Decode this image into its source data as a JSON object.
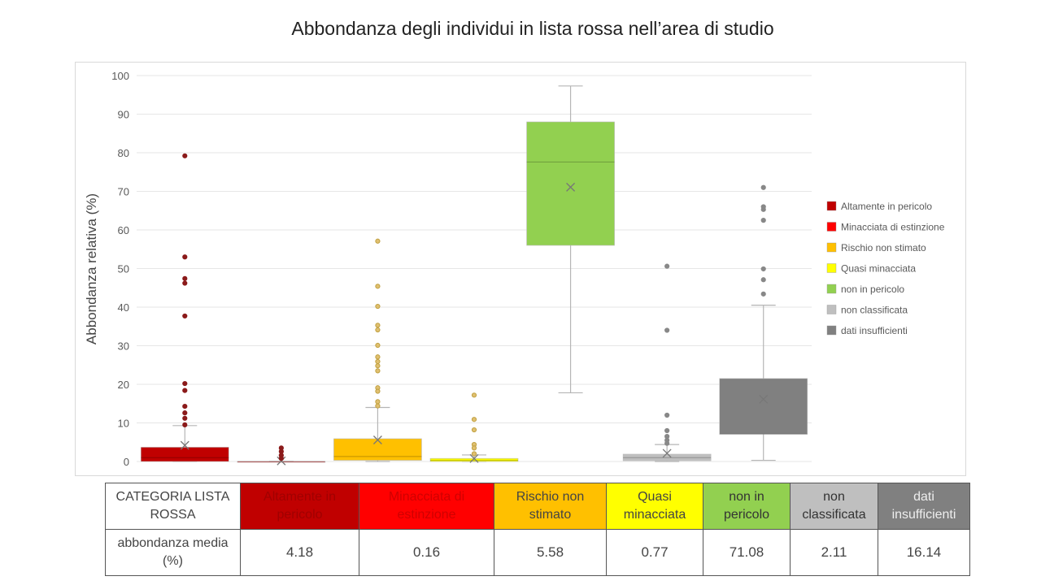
{
  "title": "Abbondanza degli individui in lista rossa nell’area di studio",
  "chart_data": {
    "type": "boxplot",
    "title": "Abbondanza degli individui in lista rossa nell’area di studio",
    "ylabel": "Abbondanza relativa (%)",
    "xlabel": "",
    "ylim": [
      0,
      100
    ],
    "yticks": [
      0,
      10,
      20,
      30,
      40,
      50,
      60,
      70,
      80,
      90,
      100
    ],
    "grid": true,
    "legend_position": "right",
    "series": [
      {
        "name": "Altamente in pericolo",
        "color": "#c00000",
        "q1": 0,
        "median": 1,
        "q3": 3.7,
        "whisker_low": 0,
        "whisker_high": 9.3,
        "mean": 4.18,
        "outliers": [
          79.2,
          53,
          47.4,
          46.2,
          37.7,
          20.2,
          18.4,
          14.3,
          12.6,
          11.2,
          9.5
        ]
      },
      {
        "name": "Minacciata di estinzione",
        "color": "#ff0000",
        "q1": 0,
        "median": 0,
        "q3": 0,
        "whisker_low": 0,
        "whisker_high": 0,
        "mean": 0.16,
        "outliers": [
          3.5,
          2.6,
          1.6,
          0.8
        ]
      },
      {
        "name": "Rischio non stimato",
        "color": "#ffc000",
        "q1": 0.3,
        "median": 1.3,
        "q3": 5.9,
        "whisker_low": 0,
        "whisker_high": 14,
        "mean": 5.58,
        "outliers": [
          57.1,
          45.4,
          40.2,
          35.3,
          34.1,
          30.1,
          27.1,
          25.9,
          24.8,
          23.5,
          19.1,
          18.2,
          15.5,
          14.4
        ]
      },
      {
        "name": "Quasi minacciata",
        "color": "#ffff00",
        "q1": 0,
        "median": 0.3,
        "q3": 0.8,
        "whisker_low": 0,
        "whisker_high": 1.7,
        "mean": 0.77,
        "outliers": [
          17.2,
          10.9,
          8.2,
          4.4,
          3.5,
          2.0
        ]
      },
      {
        "name": "non in pericolo",
        "color": "#92d050",
        "q1": 56,
        "median": 77.6,
        "q3": 88,
        "whisker_low": 17.8,
        "whisker_high": 97.3,
        "mean": 71.08,
        "outliers": []
      },
      {
        "name": "non classificata",
        "color": "#bfbfbf",
        "q1": 0.2,
        "median": 1,
        "q3": 1.9,
        "whisker_low": 0,
        "whisker_high": 4.4,
        "mean": 2.11,
        "outliers": [
          50.6,
          34,
          12,
          8,
          6.5,
          5.5,
          4.7
        ]
      },
      {
        "name": "dati insufficienti",
        "color": "#808080",
        "q1": 7.1,
        "median": 7.1,
        "q3": 21.5,
        "whisker_low": 0.3,
        "whisker_high": 40.5,
        "mean": 16.14,
        "outliers": [
          71,
          66,
          65.3,
          62.5,
          49.9,
          47.1,
          43.4
        ]
      }
    ]
  },
  "table": {
    "header_label": "CATEGORIA LISTA ROSSA",
    "row_label": "abbondanza media (%)",
    "columns": [
      {
        "label": "Altamente in pericolo",
        "value": "4.18",
        "bg": "#c00000",
        "fg": "#a00000"
      },
      {
        "label": "Minacciata di estinzione",
        "value": "0.16",
        "bg": "#ff0000",
        "fg": "#d00000"
      },
      {
        "label": "Rischio non stimato",
        "value": "5.58",
        "bg": "#ffc000",
        "fg": "#444444"
      },
      {
        "label": "Quasi minacciata",
        "value": "0.77",
        "bg": "#ffff00",
        "fg": "#444444"
      },
      {
        "label": "non in pericolo",
        "value": "71.08",
        "bg": "#92d050",
        "fg": "#333333"
      },
      {
        "label": "non classificata",
        "value": "2.11",
        "bg": "#bfbfbf",
        "fg": "#333333"
      },
      {
        "label": "dati insufficienti",
        "value": "16.14",
        "bg": "#808080",
        "fg": "#eeeeee"
      }
    ]
  }
}
